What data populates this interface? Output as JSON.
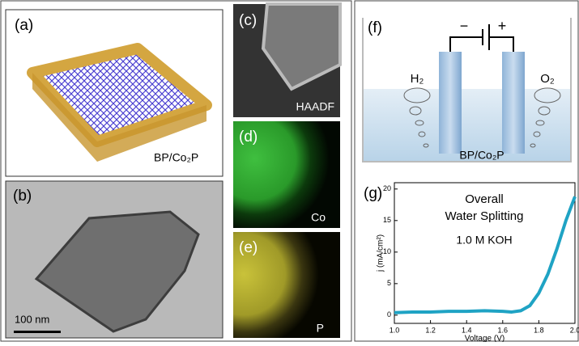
{
  "panels": {
    "a": {
      "label": "(a)",
      "caption": "BP/Co₂P"
    },
    "b": {
      "label": "(b)",
      "scale_bar": "100 nm"
    },
    "c": {
      "label": "(c)",
      "caption": "HAADF"
    },
    "d": {
      "label": "(d)",
      "caption": "Co"
    },
    "e": {
      "label": "(e)",
      "caption": "P"
    },
    "f": {
      "label": "(f)",
      "cathode": "−",
      "anode": "+",
      "left_gas": "H₂",
      "right_gas": "O₂",
      "electrodes": "BP/Co₂P"
    }
  },
  "chart_data": {
    "type": "line",
    "panel_label": "(g)",
    "annotations": [
      "Overall",
      "Water Splitting",
      "1.0 M KOH"
    ],
    "x_label": "Voltage (V)",
    "y_label": "j (mA/cm²)",
    "x": [
      1.0,
      1.1,
      1.2,
      1.3,
      1.4,
      1.5,
      1.6,
      1.65,
      1.7,
      1.75,
      1.8,
      1.85,
      1.9,
      1.95,
      2.0
    ],
    "values": [
      0.4,
      0.5,
      0.5,
      0.6,
      0.6,
      0.7,
      0.6,
      0.5,
      0.7,
      1.5,
      3.5,
      6.5,
      10.5,
      15,
      18.8
    ],
    "color": "#1fa3c4",
    "xlim": [
      1.0,
      2.0
    ],
    "ylim": [
      -1.3,
      21
    ],
    "xticks": [
      {
        "value": 1.0,
        "label": "1.0"
      },
      {
        "value": 1.2,
        "label": "1.2"
      },
      {
        "value": 1.4,
        "label": "1.4"
      },
      {
        "value": 1.6,
        "label": "1.6"
      },
      {
        "value": 1.8,
        "label": "1.8"
      },
      {
        "value": 2.0,
        "label": "2.0"
      }
    ],
    "yticks": [
      0,
      5,
      10,
      15,
      20
    ]
  }
}
